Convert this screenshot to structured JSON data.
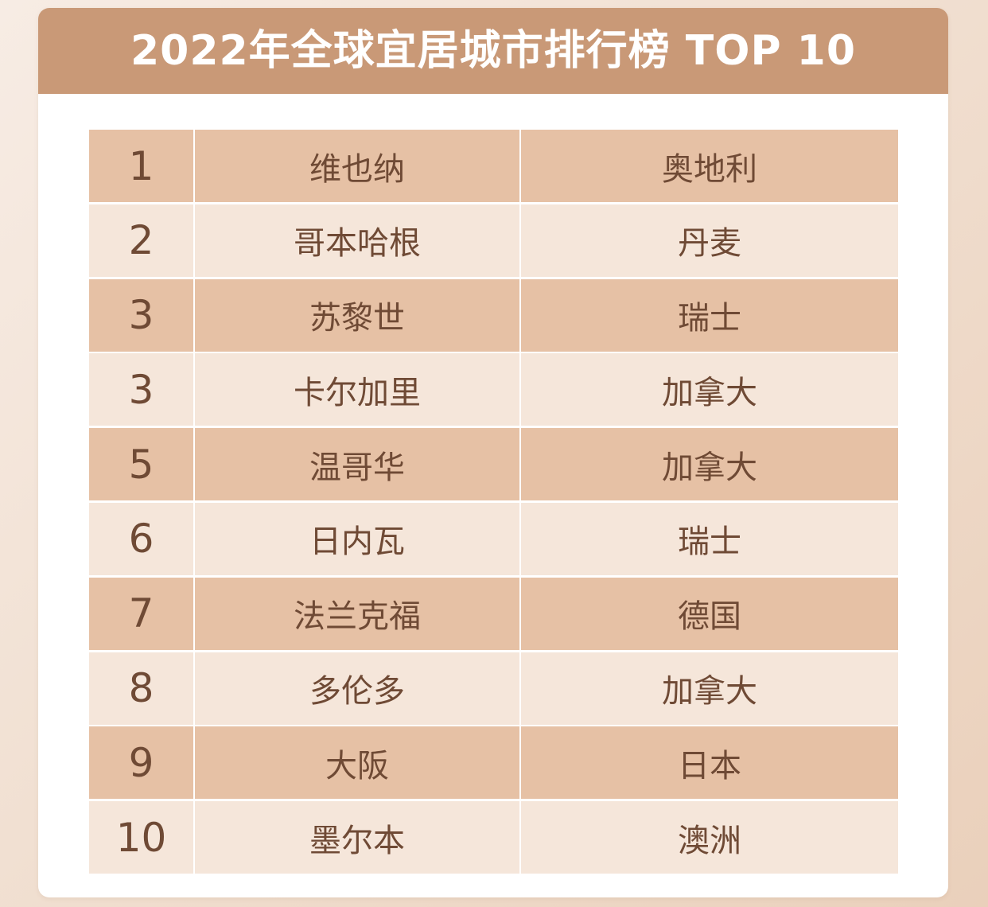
{
  "title": "2022年全球宜居城市排行榜 TOP 10",
  "rows": [
    {
      "rank": "1",
      "city": "维也纳",
      "country": "奥地利"
    },
    {
      "rank": "2",
      "city": "哥本哈根",
      "country": "丹麦"
    },
    {
      "rank": "3",
      "city": "苏黎世",
      "country": "瑞士"
    },
    {
      "rank": "3",
      "city": "卡尔加里",
      "country": "加拿大"
    },
    {
      "rank": "5",
      "city": "温哥华",
      "country": "加拿大"
    },
    {
      "rank": "6",
      "city": "日内瓦",
      "country": "瑞士"
    },
    {
      "rank": "7",
      "city": "法兰克福",
      "country": "德国"
    },
    {
      "rank": "8",
      "city": "多伦多",
      "country": "加拿大"
    },
    {
      "rank": "9",
      "city": "大阪",
      "country": "日本"
    },
    {
      "rank": "10",
      "city": "墨尔本",
      "country": "澳洲"
    }
  ],
  "colors": {
    "header": "#c99977",
    "row_dark": "#e6c1a5",
    "row_light": "#f5e6da",
    "text": "#6f4a35"
  }
}
